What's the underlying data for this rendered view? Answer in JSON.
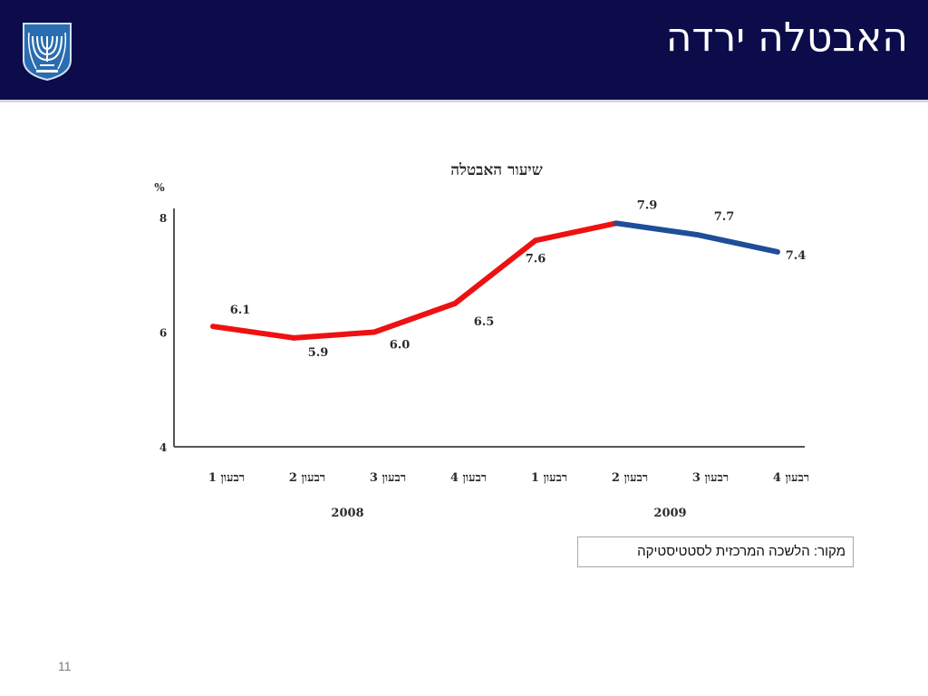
{
  "slide": {
    "title": "האבטלה ירדה",
    "page_number": "11",
    "source": "מקור: הלשכה המרכזית לסטטיסטיקה"
  },
  "colors": {
    "header_bg": "#0c0c4a",
    "emblem": "#2a6db0",
    "line_2008_to_q2_2009": "#ee1111",
    "line_after_q2_2009": "#1f4e99"
  },
  "chart_data": {
    "type": "line",
    "title": "שיעור האבטלה",
    "unit_label": "%",
    "categories": [
      "רבעון 1",
      "רבעון 2",
      "רבעון 3",
      "רבעון 4",
      "רבעון 1",
      "רבעון 2",
      "רבעון 3",
      "רבעון 4"
    ],
    "groups": [
      {
        "label": "2008",
        "start": 0,
        "end": 3
      },
      {
        "label": "2009",
        "start": 4,
        "end": 7
      }
    ],
    "values": [
      6.1,
      5.9,
      6.0,
      6.5,
      7.6,
      7.9,
      7.7,
      7.4
    ],
    "data_labels": [
      "6.1",
      "5.9",
      "6.0",
      "6.5",
      "7.6",
      "7.9",
      "7.7",
      "7.4"
    ],
    "color_change_index": 5,
    "ylim": [
      4,
      8
    ],
    "yticks": [
      "4",
      "6",
      "8"
    ],
    "grid": false,
    "legend": "none"
  }
}
